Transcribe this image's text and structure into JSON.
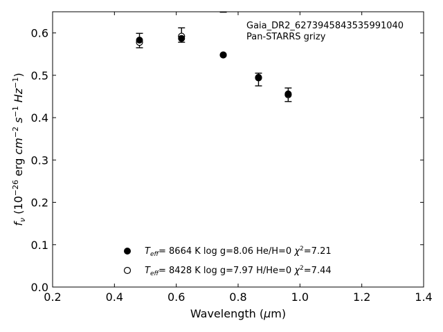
{
  "chart_data": {
    "type": "scatter",
    "xlabel": "Wavelength (μm)",
    "ylabel": "f_ν (10^-26 erg cm^-2 s^-1 Hz^-1)",
    "xlim": [
      0.2,
      1.4
    ],
    "ylim": [
      0.0,
      0.65
    ],
    "xticks": [
      "0.2",
      "0.4",
      "0.6",
      "0.8",
      "1.0",
      "1.2",
      "1.4"
    ],
    "yticks": [
      "0.0",
      "0.1",
      "0.2",
      "0.3",
      "0.4",
      "0.5",
      "0.6"
    ],
    "annotation": [
      "Gaia_DR2_6273945843535991040",
      "Pan-STARRS grizy"
    ],
    "observed": {
      "x": [
        0.481,
        0.617,
        0.752,
        0.866,
        0.962
      ],
      "y": [
        0.582,
        0.595,
        0.661,
        0.49,
        0.454
      ],
      "yerr": [
        0.017,
        0.017,
        0.012,
        0.015,
        0.016
      ]
    },
    "series": [
      {
        "marker": "filled-circle",
        "legend": {
          "teff_value": "8664 K",
          "logg": "log g=8.06",
          "composition": "He/H=0",
          "chi2_value": "=7.21"
        },
        "x": [
          0.481,
          0.617,
          0.752,
          0.866,
          0.962
        ],
        "y": [
          0.583,
          0.587,
          0.548,
          0.495,
          0.456
        ]
      },
      {
        "marker": "open-circle",
        "legend": {
          "teff_value": "8428 K",
          "logg": "log g=7.97",
          "composition": "H/He=0",
          "chi2_value": "=7.44"
        },
        "x": [
          0.481,
          0.617,
          0.752,
          0.866,
          0.962
        ],
        "y": [
          0.578,
          0.592,
          0.548,
          0.494,
          0.454
        ]
      }
    ]
  }
}
